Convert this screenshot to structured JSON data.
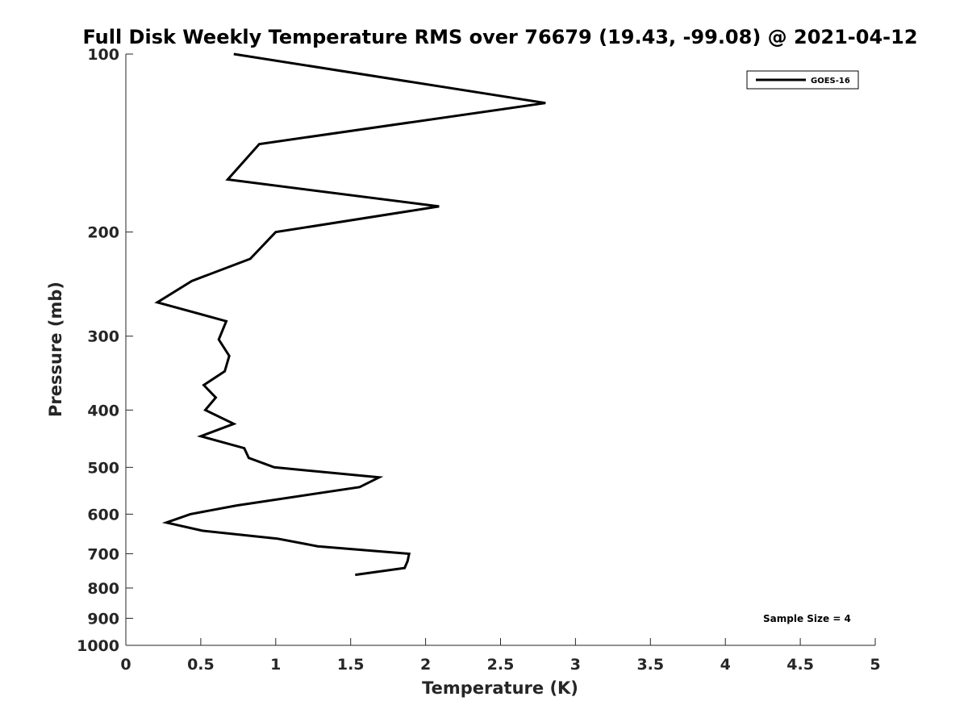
{
  "chart_data": {
    "type": "line",
    "title": "Full Disk Weekly Temperature RMS over 76679 (19.43, -99.08) @ 2021-04-12",
    "xlabel": "Temperature (K)",
    "ylabel": "Pressure (mb)",
    "xlim": [
      0,
      5
    ],
    "ylim": [
      100,
      1000
    ],
    "y_scale": "log",
    "y_reversed": true,
    "grid": false,
    "x_ticks": [
      0,
      0.5,
      1,
      1.5,
      2,
      2.5,
      3,
      3.5,
      4,
      4.5,
      5
    ],
    "x_tick_labels": [
      "0",
      "0.5",
      "1",
      "1.5",
      "2",
      "2.5",
      "3",
      "3.5",
      "4",
      "4.5",
      "5"
    ],
    "y_ticks": [
      100,
      200,
      300,
      400,
      500,
      600,
      700,
      800,
      900,
      1000
    ],
    "y_tick_labels": [
      "100",
      "200",
      "300",
      "400",
      "500",
      "600",
      "700",
      "800",
      "900",
      "1000"
    ],
    "legend": {
      "placement": "top-right",
      "entries": [
        "GOES-16"
      ]
    },
    "annotation": "Sample Size = 4",
    "series": [
      {
        "name": "GOES-16",
        "color": "#000000",
        "points": [
          [
            0.72,
            100
          ],
          [
            2.8,
            121
          ],
          [
            0.89,
            142
          ],
          [
            0.68,
            163
          ],
          [
            2.09,
            181
          ],
          [
            1.0,
            200
          ],
          [
            0.83,
            222
          ],
          [
            0.44,
            242
          ],
          [
            0.21,
            263
          ],
          [
            0.67,
            283
          ],
          [
            0.62,
            304
          ],
          [
            0.69,
            324
          ],
          [
            0.66,
            344
          ],
          [
            0.52,
            363
          ],
          [
            0.6,
            381
          ],
          [
            0.53,
            400
          ],
          [
            0.72,
            422
          ],
          [
            0.5,
            443
          ],
          [
            0.79,
            464
          ],
          [
            0.82,
            482
          ],
          [
            0.99,
            500
          ],
          [
            1.69,
            520
          ],
          [
            1.56,
            540
          ],
          [
            0.74,
            580
          ],
          [
            0.43,
            600
          ],
          [
            0.27,
            620
          ],
          [
            0.51,
            640
          ],
          [
            1.01,
            660
          ],
          [
            1.28,
            680
          ],
          [
            1.89,
            700
          ],
          [
            1.88,
            720
          ],
          [
            1.86,
            740
          ],
          [
            1.53,
            760
          ]
        ]
      }
    ]
  }
}
